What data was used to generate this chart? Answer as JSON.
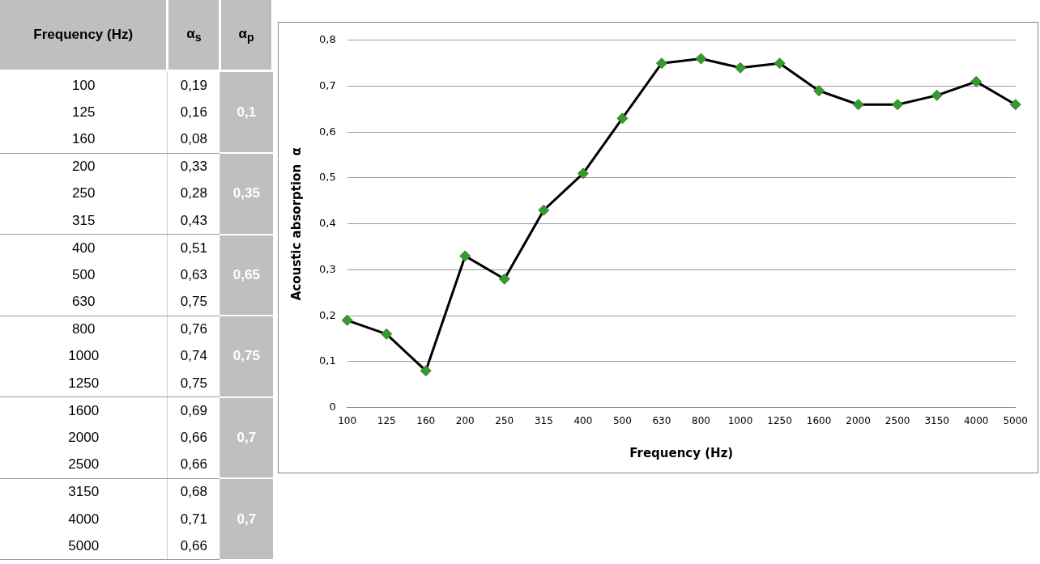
{
  "chart_data": {
    "type": "line",
    "xlabel": "Frequency (Hz)",
    "ylabel": "Acoustic absorption  α",
    "categories": [
      "100",
      "125",
      "160",
      "200",
      "250",
      "315",
      "400",
      "500",
      "630",
      "800",
      "1000",
      "1250",
      "1600",
      "2000",
      "2500",
      "3150",
      "4000",
      "5000"
    ],
    "series": [
      {
        "color": "#000000",
        "values": [
          0.19,
          0.16,
          0.08,
          0.33,
          0.28,
          0.43,
          0.51,
          0.63,
          0.75,
          0.76,
          0.74,
          0.75,
          0.69,
          0.66,
          0.66,
          0.68,
          0.71,
          0.66
        ]
      }
    ],
    "ylim": [
      0,
      0.8
    ],
    "yticks": [
      0,
      {
        "value": 0.1,
        "label": "0,1"
      },
      {
        "value": 0.2,
        "label": "0,2"
      },
      {
        "value": 0.3,
        "label": "0,3"
      },
      {
        "value": 0.4,
        "label": "0,4"
      },
      {
        "value": 0.5,
        "label": "0,5"
      },
      {
        "value": 0.6,
        "label": "0,6"
      },
      {
        "value": 0.7,
        "label": "0,7"
      },
      {
        "value": 0.8,
        "label": "0,8"
      }
    ],
    "grid": "y",
    "legend": false,
    "marker": "diamond",
    "line_style": "solid",
    "annotations": [
      "Frequency (Hz)",
      "α$_{s}$",
      "α$_{p}$",
      "0,19",
      "0,16",
      "0,08",
      "0,33",
      "0,28",
      "0,43",
      "0,51",
      "0,63",
      "0,75",
      "0,76",
      "0,74",
      "0,75",
      "0,69",
      "0,66",
      "0,66",
      "0,68",
      "0,71",
      "0,66",
      "0,1",
      "0,35",
      "0,65",
      "0,75",
      "0,7",
      "0,7"
    ]
  }
}
